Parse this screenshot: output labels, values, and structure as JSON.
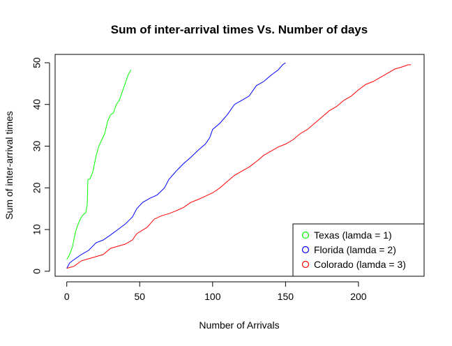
{
  "chart_data": {
    "type": "line",
    "title": "Sum of inter-arrival times Vs. Number of days",
    "xlabel": "Number of Arrivals",
    "ylabel": "Sum of inter-arrival times",
    "xlim": [
      -8,
      245
    ],
    "ylim": [
      -1.2,
      52
    ],
    "xticks": [
      0,
      50,
      100,
      150,
      200
    ],
    "yticks": [
      0,
      10,
      20,
      30,
      40,
      50
    ],
    "grid": false,
    "legend_position": "bottom-right",
    "series": [
      {
        "name": "Texas (lamda = 1)",
        "color": "#00ff00",
        "points": [
          [
            0,
            2.8
          ],
          [
            2,
            4
          ],
          [
            4,
            6
          ],
          [
            6,
            9.5
          ],
          [
            8,
            11.5
          ],
          [
            10,
            13
          ],
          [
            12,
            13.8
          ],
          [
            13,
            14
          ],
          [
            14,
            16
          ],
          [
            14.5,
            22
          ],
          [
            16,
            22.2
          ],
          [
            18,
            24
          ],
          [
            20,
            27.5
          ],
          [
            22,
            30
          ],
          [
            24,
            31.5
          ],
          [
            26,
            33
          ],
          [
            28,
            36
          ],
          [
            30,
            37.5
          ],
          [
            32,
            38
          ],
          [
            34,
            40
          ],
          [
            36,
            41
          ],
          [
            38,
            43
          ],
          [
            40,
            45
          ],
          [
            42,
            47
          ],
          [
            44,
            48.3
          ]
        ]
      },
      {
        "name": "Florida (lamda = 2)",
        "color": "#0000ff",
        "points": [
          [
            0,
            0.7
          ],
          [
            2,
            2
          ],
          [
            5,
            2.8
          ],
          [
            10,
            4
          ],
          [
            15,
            5
          ],
          [
            20,
            6.8
          ],
          [
            25,
            7.5
          ],
          [
            30,
            8.7
          ],
          [
            35,
            10
          ],
          [
            40,
            11.3
          ],
          [
            45,
            13
          ],
          [
            48,
            15
          ],
          [
            52,
            16.5
          ],
          [
            57,
            17.5
          ],
          [
            62,
            18.3
          ],
          [
            67,
            20
          ],
          [
            70,
            22
          ],
          [
            75,
            24
          ],
          [
            80,
            25.8
          ],
          [
            85,
            27.3
          ],
          [
            90,
            29
          ],
          [
            95,
            30.5
          ],
          [
            98,
            32
          ],
          [
            100,
            34
          ],
          [
            105,
            35.5
          ],
          [
            110,
            37.5
          ],
          [
            115,
            40
          ],
          [
            120,
            41
          ],
          [
            125,
            42
          ],
          [
            130,
            44.5
          ],
          [
            135,
            45.5
          ],
          [
            140,
            47
          ],
          [
            145,
            48.3
          ],
          [
            148,
            49.5
          ],
          [
            150,
            50
          ]
        ]
      },
      {
        "name": "Colorado (lamda = 3)",
        "color": "#ff0000",
        "points": [
          [
            0,
            0.7
          ],
          [
            5,
            1.2
          ],
          [
            10,
            2.5
          ],
          [
            15,
            3
          ],
          [
            20,
            3.5
          ],
          [
            25,
            4
          ],
          [
            30,
            5.5
          ],
          [
            35,
            6
          ],
          [
            40,
            6.5
          ],
          [
            45,
            7.5
          ],
          [
            48,
            9
          ],
          [
            55,
            10.5
          ],
          [
            60,
            12.5
          ],
          [
            65,
            13.3
          ],
          [
            70,
            13.8
          ],
          [
            75,
            14.5
          ],
          [
            80,
            15.3
          ],
          [
            85,
            16.5
          ],
          [
            90,
            17.2
          ],
          [
            95,
            18
          ],
          [
            100,
            18.8
          ],
          [
            105,
            20
          ],
          [
            110,
            21.5
          ],
          [
            115,
            23
          ],
          [
            120,
            24
          ],
          [
            125,
            25
          ],
          [
            130,
            26.3
          ],
          [
            135,
            27.8
          ],
          [
            140,
            28.8
          ],
          [
            145,
            29.8
          ],
          [
            150,
            30.5
          ],
          [
            155,
            31.5
          ],
          [
            160,
            33
          ],
          [
            165,
            34
          ],
          [
            170,
            35.5
          ],
          [
            175,
            37
          ],
          [
            180,
            38.5
          ],
          [
            185,
            39.5
          ],
          [
            190,
            41
          ],
          [
            195,
            42
          ],
          [
            200,
            43.5
          ],
          [
            205,
            44.8
          ],
          [
            210,
            45.5
          ],
          [
            215,
            46.5
          ],
          [
            220,
            47.5
          ],
          [
            225,
            48.5
          ],
          [
            230,
            49
          ],
          [
            234,
            49.5
          ],
          [
            236,
            49.5
          ]
        ]
      }
    ]
  }
}
